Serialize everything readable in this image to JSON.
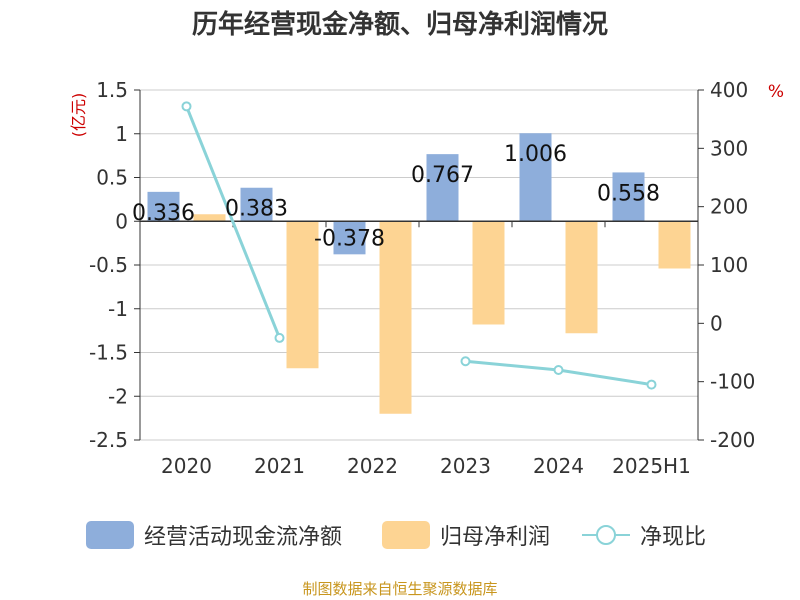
{
  "source": "制图数据来自恒生聚源数据库",
  "chart_data": {
    "type": "bar",
    "title": "历年经营现金净额、归母净利润情况",
    "categories": [
      "2020",
      "2021",
      "2022",
      "2023",
      "2024",
      "2025H1"
    ],
    "y_left_label": "(亿元)",
    "y_right_label": "%",
    "y_left_lim": [
      -2.5,
      1.5
    ],
    "y_left_ticks": [
      1.5,
      1,
      0.5,
      0,
      -0.5,
      -1,
      -1.5,
      -2,
      -2.5
    ],
    "y_right_lim": [
      -200,
      400
    ],
    "y_right_ticks": [
      400,
      300,
      200,
      100,
      0,
      -100,
      -200
    ],
    "grid": true,
    "legend_position": "bottom",
    "series": [
      {
        "name": "经营活动现金流净额",
        "kind": "bar",
        "axis": "left",
        "color": "#8eaedb",
        "values": [
          0.336,
          0.383,
          -0.378,
          0.767,
          1.006,
          0.558
        ],
        "data_labels": [
          "0.336",
          "0.383",
          "-0.378",
          "0.767",
          "1.006",
          "0.558"
        ]
      },
      {
        "name": "归母净利润",
        "kind": "bar",
        "axis": "left",
        "color": "#fdd493",
        "values": [
          0.08,
          -1.68,
          -2.2,
          -1.18,
          -1.28,
          -0.54
        ]
      },
      {
        "name": "净现比",
        "kind": "line",
        "axis": "right",
        "color": "#8ad3d8",
        "values": [
          372,
          -25,
          null,
          -65,
          -80,
          -105
        ]
      }
    ]
  }
}
